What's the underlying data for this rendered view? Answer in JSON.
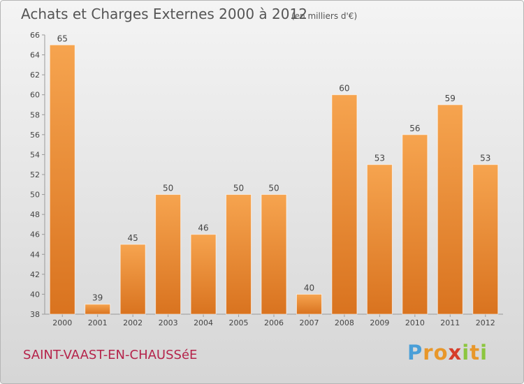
{
  "chart_data": {
    "type": "bar",
    "title": "Achats et Charges Externes 2000 à 2012",
    "subtitle": "(en milliers d'€)",
    "categories": [
      "2000",
      "2001",
      "2002",
      "2003",
      "2004",
      "2005",
      "2006",
      "2007",
      "2008",
      "2009",
      "2010",
      "2011",
      "2012"
    ],
    "values": [
      65,
      39,
      45,
      50,
      46,
      50,
      50,
      40,
      60,
      53,
      56,
      59,
      53
    ],
    "ylim": [
      38,
      66
    ],
    "yticks": [
      38,
      40,
      42,
      44,
      46,
      48,
      50,
      52,
      54,
      56,
      58,
      60,
      62,
      64,
      66
    ],
    "grid": false,
    "legend": "none"
  },
  "commune": "SAINT-VAAST-EN-CHAUSSéE",
  "brand": {
    "letters": [
      "P",
      "r",
      "o",
      "x",
      "i",
      "t",
      "i"
    ],
    "colors": [
      "#4a9fd8",
      "#e8972a",
      "#e8972a",
      "#d63d2a",
      "#8cc63f",
      "#e8972a",
      "#8cc63f"
    ]
  },
  "colors": {
    "bar_top": "#f6a44f",
    "bar_bottom": "#d9731f",
    "title": "#555555",
    "commune": "#b5234a",
    "axis": "#999999",
    "label": "#444444"
  }
}
